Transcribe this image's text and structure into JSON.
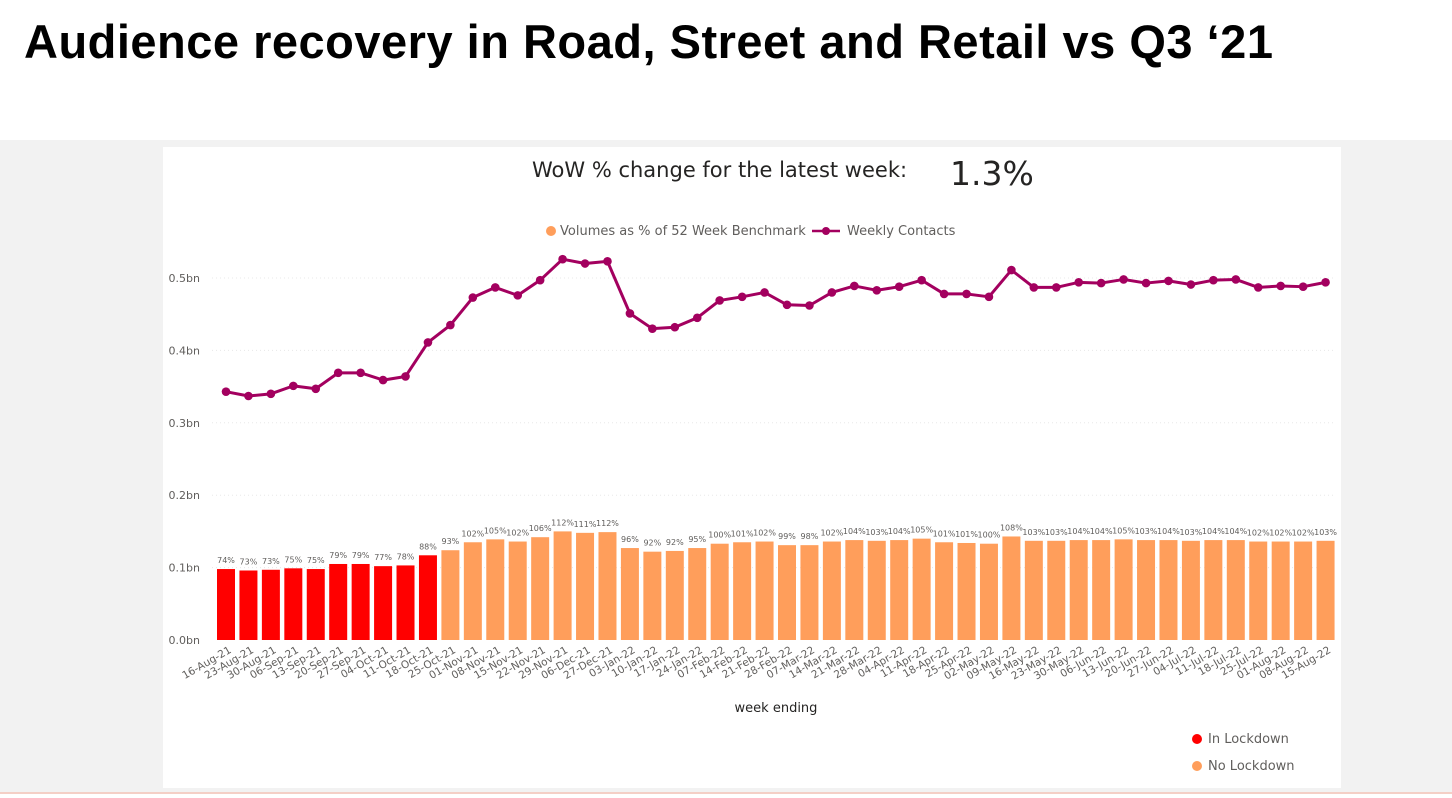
{
  "slide": {
    "title": "Audience recovery in Road, Street and Retail vs Q3 ‘21"
  },
  "kpi": {
    "label": "WoW % change for the latest week:",
    "value": "1.3%"
  },
  "colors": {
    "lockdown": "#ff0000",
    "no_lockdown": "#ff9e5b",
    "line": "#a3005f",
    "gridline": "#e8e8e8"
  },
  "chart_data": {
    "type": "bar+line",
    "xlabel": "week ending",
    "ylabel": "",
    "ylim": [
      0,
      0.5
    ],
    "y_ticks": [
      "0.0bn",
      "0.1bn",
      "0.2bn",
      "0.3bn",
      "0.4bn",
      "0.5bn"
    ],
    "categories": [
      "16-Aug-21",
      "23-Aug-21",
      "30-Aug-21",
      "06-Sep-21",
      "13-Sep-21",
      "20-Sep-21",
      "27-Sep-21",
      "04-Oct-21",
      "11-Oct-21",
      "18-Oct-21",
      "25-Oct-21",
      "01-Nov-21",
      "08-Nov-21",
      "15-Nov-21",
      "22-Nov-21",
      "29-Nov-21",
      "06-Dec-21",
      "27-Dec-21",
      "03-Jan-22",
      "10-Jan-22",
      "17-Jan-22",
      "24-Jan-22",
      "07-Feb-22",
      "14-Feb-22",
      "21-Feb-22",
      "28-Feb-22",
      "07-Mar-22",
      "14-Mar-22",
      "21-Mar-22",
      "28-Mar-22",
      "04-Apr-22",
      "11-Apr-22",
      "18-Apr-22",
      "25-Apr-22",
      "02-May-22",
      "09-May-22",
      "16-May-22",
      "23-May-22",
      "30-May-22",
      "06-Jun-22",
      "13-Jun-22",
      "20-Jun-22",
      "27-Jun-22",
      "04-Jul-22",
      "11-Jul-22",
      "18-Jul-22",
      "25-Jul-22",
      "01-Aug-22",
      "08-Aug-22",
      "15-Aug-22"
    ],
    "legend": {
      "position": "top",
      "items": [
        "Volumes as % of 52 Week Benchmark",
        "Weekly Contacts"
      ]
    },
    "color_legend": {
      "position": "bottom-right",
      "items": [
        "In Lockdown",
        "No Lockdown"
      ]
    },
    "series": [
      {
        "name": "Volumes as % of 52 Week Benchmark",
        "kind": "bar",
        "bar_values": [
          0.098,
          0.096,
          0.097,
          0.099,
          0.098,
          0.105,
          0.105,
          0.102,
          0.103,
          0.117,
          0.124,
          0.135,
          0.139,
          0.136,
          0.142,
          0.15,
          0.148,
          0.149,
          0.127,
          0.122,
          0.123,
          0.127,
          0.133,
          0.135,
          0.136,
          0.131,
          0.131,
          0.136,
          0.138,
          0.137,
          0.138,
          0.14,
          0.135,
          0.134,
          0.133,
          0.143,
          0.137,
          0.137,
          0.138,
          0.138,
          0.139,
          0.138,
          0.138,
          0.137,
          0.138,
          0.138,
          0.136,
          0.136,
          0.136,
          0.137
        ],
        "data_labels": [
          "74%",
          "73%",
          "73%",
          "75%",
          "75%",
          "79%",
          "79%",
          "77%",
          "78%",
          "88%",
          "93%",
          "102%",
          "105%",
          "102%",
          "106%",
          "112%",
          "111%",
          "112%",
          "96%",
          "92%",
          "92%",
          "95%",
          "100%",
          "101%",
          "102%",
          "99%",
          "98%",
          "102%",
          "104%",
          "103%",
          "104%",
          "105%",
          "101%",
          "101%",
          "100%",
          "108%",
          "103%",
          "103%",
          "104%",
          "104%",
          "105%",
          "103%",
          "104%",
          "103%",
          "104%",
          "104%",
          "102%",
          "102%",
          "102%",
          "103%"
        ],
        "lockdown": [
          true,
          true,
          true,
          true,
          true,
          true,
          true,
          true,
          true,
          true,
          false,
          false,
          false,
          false,
          false,
          false,
          false,
          false,
          false,
          false,
          false,
          false,
          false,
          false,
          false,
          false,
          false,
          false,
          false,
          false,
          false,
          false,
          false,
          false,
          false,
          false,
          false,
          false,
          false,
          false,
          false,
          false,
          false,
          false,
          false,
          false,
          false,
          false,
          false,
          false
        ]
      },
      {
        "name": "Weekly Contacts",
        "kind": "line",
        "values": [
          0.343,
          0.337,
          0.34,
          0.351,
          0.347,
          0.369,
          0.369,
          0.359,
          0.364,
          0.411,
          0.435,
          0.473,
          0.487,
          0.476,
          0.497,
          0.526,
          0.52,
          0.523,
          0.451,
          0.43,
          0.432,
          0.445,
          0.469,
          0.474,
          0.48,
          0.463,
          0.462,
          0.48,
          0.489,
          0.483,
          0.488,
          0.497,
          0.478,
          0.478,
          0.474,
          0.511,
          0.487,
          0.487,
          0.494,
          0.493,
          0.498,
          0.493,
          0.496,
          0.491,
          0.497,
          0.498,
          0.487,
          0.489,
          0.488,
          0.494
        ]
      }
    ]
  }
}
